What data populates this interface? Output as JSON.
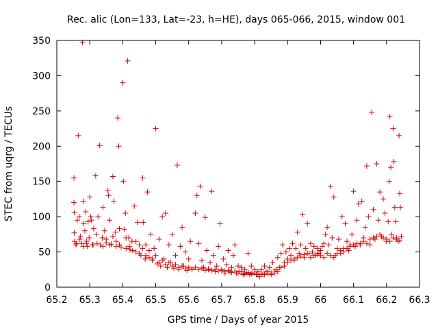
{
  "chart_data": {
    "type": "scatter",
    "title": "Rec. alic (Lon=133, Lat=-23, h=HE), days 065-066, 2015, window 001",
    "xlabel": "GPS time / Days of year 2015",
    "ylabel": "STEC from uqrg / TECUs",
    "xlim": [
      65.2,
      66.3
    ],
    "ylim": [
      0,
      350
    ],
    "xticks": [
      "65.2",
      "65.3",
      "65.4",
      "65.5",
      "65.6",
      "65.7",
      "65.8",
      "65.9",
      "66",
      "66.1",
      "66.2",
      "66.3"
    ],
    "yticks": [
      "0",
      "50",
      "100",
      "150",
      "200",
      "250",
      "300",
      "350"
    ],
    "grid": false,
    "marker": "+",
    "color": "#d40000",
    "series": [
      {
        "points": [
          [
            65.252,
            155
          ],
          [
            65.252,
            120
          ],
          [
            65.253,
            106
          ],
          [
            65.253,
            77
          ],
          [
            65.254,
            65
          ],
          [
            65.258,
            60
          ],
          [
            65.262,
            95
          ],
          [
            65.265,
            215
          ],
          [
            65.268,
            100
          ],
          [
            65.272,
            72
          ],
          [
            65.275,
            62
          ],
          [
            65.278,
            347
          ],
          [
            65.28,
            122
          ],
          [
            65.282,
            90
          ],
          [
            65.285,
            80
          ],
          [
            65.288,
            107
          ],
          [
            65.29,
            65
          ],
          [
            65.293,
            58
          ],
          [
            65.295,
            93
          ],
          [
            65.298,
            70
          ],
          [
            65.3,
            128
          ],
          [
            65.303,
            100
          ],
          [
            65.305,
            95
          ],
          [
            65.308,
            60
          ],
          [
            65.312,
            83
          ],
          [
            65.318,
            158
          ],
          [
            65.322,
            62
          ],
          [
            65.325,
            100
          ],
          [
            65.33,
            201
          ],
          [
            65.332,
            60
          ],
          [
            65.338,
            70
          ],
          [
            65.34,
            113
          ],
          [
            65.345,
            80
          ],
          [
            65.35,
            63
          ],
          [
            65.355,
            137
          ],
          [
            65.357,
            130
          ],
          [
            65.36,
            95
          ],
          [
            65.365,
            61
          ],
          [
            65.37,
            157
          ],
          [
            65.373,
            122
          ],
          [
            65.378,
            78
          ],
          [
            65.38,
            58
          ],
          [
            65.385,
            240
          ],
          [
            65.388,
            200
          ],
          [
            65.39,
            83
          ],
          [
            65.395,
            57
          ],
          [
            65.4,
            290
          ],
          [
            65.402,
            150
          ],
          [
            65.405,
            82
          ],
          [
            65.408,
            105
          ],
          [
            65.41,
            55
          ],
          [
            65.415,
            321
          ],
          [
            65.418,
            70
          ],
          [
            65.422,
            53
          ],
          [
            65.428,
            65
          ],
          [
            65.435,
            115
          ],
          [
            65.44,
            50
          ],
          [
            65.445,
            92
          ],
          [
            65.45,
            60
          ],
          [
            65.455,
            45
          ],
          [
            65.46,
            155
          ],
          [
            65.462,
            92
          ],
          [
            65.468,
            40
          ],
          [
            65.47,
            60
          ],
          [
            65.475,
            135
          ],
          [
            65.48,
            42
          ],
          [
            65.485,
            75
          ],
          [
            65.49,
            38
          ],
          [
            65.495,
            55
          ],
          [
            65.5,
            225
          ],
          [
            65.505,
            33
          ],
          [
            65.51,
            68
          ],
          [
            65.515,
            30
          ],
          [
            65.52,
            100
          ],
          [
            65.525,
            40
          ],
          [
            65.53,
            105
          ],
          [
            65.535,
            28
          ],
          [
            65.54,
            60
          ],
          [
            65.545,
            35
          ],
          [
            65.55,
            75
          ],
          [
            65.555,
            27
          ],
          [
            65.56,
            45
          ],
          [
            65.565,
            173
          ],
          [
            65.57,
            25
          ],
          [
            65.575,
            58
          ],
          [
            65.58,
            85
          ],
          [
            65.585,
            30
          ],
          [
            65.59,
            50
          ],
          [
            65.595,
            24
          ],
          [
            65.6,
            40
          ],
          [
            65.605,
            65
          ],
          [
            65.61,
            25
          ],
          [
            65.62,
            105
          ],
          [
            65.625,
            130
          ],
          [
            65.63,
            62
          ],
          [
            65.635,
            143
          ],
          [
            65.64,
            38
          ],
          [
            65.645,
            28
          ],
          [
            65.65,
            99
          ],
          [
            65.655,
            52
          ],
          [
            65.66,
            25
          ],
          [
            65.665,
            35
          ],
          [
            65.67,
            136
          ],
          [
            65.675,
            45
          ],
          [
            65.68,
            22
          ],
          [
            65.685,
            30
          ],
          [
            65.69,
            58
          ],
          [
            65.695,
            90
          ],
          [
            65.7,
            25
          ],
          [
            65.705,
            40
          ],
          [
            65.71,
            20
          ],
          [
            65.715,
            32
          ],
          [
            65.72,
            52
          ],
          [
            65.725,
            22
          ],
          [
            65.73,
            28
          ],
          [
            65.735,
            45
          ],
          [
            65.74,
            60
          ],
          [
            65.745,
            20
          ],
          [
            65.75,
            30
          ],
          [
            65.755,
            22
          ],
          [
            65.76,
            28
          ],
          [
            65.765,
            18
          ],
          [
            65.77,
            25
          ],
          [
            65.775,
            20
          ],
          [
            65.78,
            48
          ],
          [
            65.785,
            18
          ],
          [
            65.79,
            30
          ],
          [
            65.795,
            20
          ],
          [
            65.8,
            25
          ],
          [
            65.805,
            18
          ],
          [
            65.81,
            22
          ],
          [
            65.815,
            15
          ],
          [
            65.82,
            25
          ],
          [
            65.825,
            18
          ],
          [
            65.83,
            30
          ],
          [
            65.835,
            22
          ],
          [
            65.84,
            20
          ],
          [
            65.845,
            28
          ],
          [
            65.85,
            18
          ],
          [
            65.855,
            35
          ],
          [
            65.86,
            20
          ],
          [
            65.865,
            25
          ],
          [
            65.87,
            42
          ],
          [
            65.875,
            28
          ],
          [
            65.88,
            48
          ],
          [
            65.885,
            60
          ],
          [
            65.89,
            35
          ],
          [
            65.895,
            50
          ],
          [
            65.9,
            40
          ],
          [
            65.905,
            55
          ],
          [
            65.91,
            45
          ],
          [
            65.915,
            62
          ],
          [
            65.92,
            38
          ],
          [
            65.925,
            55
          ],
          [
            65.93,
            78
          ],
          [
            65.935,
            48
          ],
          [
            65.94,
            60
          ],
          [
            65.945,
            103
          ],
          [
            65.95,
            42
          ],
          [
            65.955,
            55
          ],
          [
            65.96,
            90
          ],
          [
            65.965,
            48
          ],
          [
            65.97,
            62
          ],
          [
            65.975,
            50
          ],
          [
            65.98,
            58
          ],
          [
            65.985,
            45
          ],
          [
            65.99,
            55
          ],
          [
            65.995,
            48
          ],
          [
            66.0,
            52
          ],
          [
            66.005,
            58
          ],
          [
            66.01,
            62
          ],
          [
            66.015,
            75
          ],
          [
            66.02,
            85
          ],
          [
            66.025,
            60
          ],
          [
            66.03,
            143
          ],
          [
            66.035,
            70
          ],
          [
            66.04,
            128
          ],
          [
            66.045,
            45
          ],
          [
            66.05,
            55
          ],
          [
            66.055,
            68
          ],
          [
            66.06,
            48
          ],
          [
            66.065,
            100
          ],
          [
            66.07,
            55
          ],
          [
            66.075,
            90
          ],
          [
            66.08,
            65
          ],
          [
            66.085,
            52
          ],
          [
            66.09,
            60
          ],
          [
            66.095,
            75
          ],
          [
            66.1,
            136
          ],
          [
            66.105,
            58
          ],
          [
            66.11,
            95
          ],
          [
            66.115,
            118
          ],
          [
            66.12,
            62
          ],
          [
            66.125,
            122
          ],
          [
            66.13,
            70
          ],
          [
            66.135,
            85
          ],
          [
            66.14,
            172
          ],
          [
            66.145,
            100
          ],
          [
            66.15,
            60
          ],
          [
            66.155,
            248
          ],
          [
            66.16,
            110
          ],
          [
            66.165,
            68
          ],
          [
            66.17,
            175
          ],
          [
            66.175,
            95
          ],
          [
            66.18,
            135
          ],
          [
            66.185,
            72
          ],
          [
            66.19,
            125
          ],
          [
            66.195,
            105
          ],
          [
            66.2,
            65
          ],
          [
            66.205,
            93
          ],
          [
            66.208,
            150
          ],
          [
            66.21,
            242
          ],
          [
            66.213,
            170
          ],
          [
            66.215,
            75
          ],
          [
            66.22,
            225
          ],
          [
            66.222,
            178
          ],
          [
            66.225,
            113
          ],
          [
            66.228,
            93
          ],
          [
            66.23,
            70
          ],
          [
            66.235,
            65
          ],
          [
            66.238,
            215
          ],
          [
            66.24,
            133
          ],
          [
            66.242,
            113
          ],
          [
            66.245,
            72
          ],
          [
            65.26,
            62
          ],
          [
            65.27,
            68
          ],
          [
            65.28,
            58
          ],
          [
            65.29,
            62
          ],
          [
            65.31,
            60
          ],
          [
            65.32,
            75
          ],
          [
            65.34,
            58
          ],
          [
            65.35,
            68
          ],
          [
            65.36,
            60
          ],
          [
            65.37,
            72
          ],
          [
            65.38,
            65
          ],
          [
            65.39,
            60
          ],
          [
            65.41,
            70
          ],
          [
            65.42,
            58
          ],
          [
            65.43,
            52
          ],
          [
            65.44,
            65
          ],
          [
            65.45,
            48
          ],
          [
            65.46,
            55
          ],
          [
            65.47,
            45
          ],
          [
            65.48,
            52
          ],
          [
            65.49,
            40
          ],
          [
            65.5,
            45
          ],
          [
            65.51,
            35
          ],
          [
            65.52,
            38
          ],
          [
            65.53,
            32
          ],
          [
            65.54,
            35
          ],
          [
            65.55,
            30
          ],
          [
            65.56,
            32
          ],
          [
            65.57,
            28
          ],
          [
            65.58,
            30
          ],
          [
            65.59,
            26
          ],
          [
            65.6,
            28
          ],
          [
            65.61,
            26
          ],
          [
            65.62,
            28
          ],
          [
            65.63,
            25
          ],
          [
            65.64,
            27
          ],
          [
            65.65,
            24
          ],
          [
            65.66,
            26
          ],
          [
            65.67,
            24
          ],
          [
            65.68,
            25
          ],
          [
            65.69,
            23
          ],
          [
            65.7,
            24
          ],
          [
            65.71,
            22
          ],
          [
            65.72,
            24
          ],
          [
            65.73,
            21
          ],
          [
            65.74,
            23
          ],
          [
            65.75,
            20
          ],
          [
            65.76,
            22
          ],
          [
            65.77,
            19
          ],
          [
            65.78,
            21
          ],
          [
            65.79,
            19
          ],
          [
            65.8,
            20
          ],
          [
            65.81,
            18
          ],
          [
            65.82,
            20
          ],
          [
            65.83,
            18
          ],
          [
            65.84,
            22
          ],
          [
            65.85,
            20
          ],
          [
            65.86,
            23
          ],
          [
            65.87,
            22
          ],
          [
            65.88,
            28
          ],
          [
            65.89,
            30
          ],
          [
            65.9,
            35
          ],
          [
            65.91,
            38
          ],
          [
            65.92,
            40
          ],
          [
            65.93,
            42
          ],
          [
            65.94,
            44
          ],
          [
            65.95,
            46
          ],
          [
            65.96,
            48
          ],
          [
            65.97,
            42
          ],
          [
            65.98,
            45
          ],
          [
            65.99,
            47
          ],
          [
            66.0,
            45
          ],
          [
            66.01,
            42
          ],
          [
            66.02,
            48
          ],
          [
            66.03,
            45
          ],
          [
            66.04,
            42
          ],
          [
            66.05,
            48
          ],
          [
            66.06,
            52
          ],
          [
            66.07,
            50
          ],
          [
            66.08,
            55
          ],
          [
            66.09,
            58
          ],
          [
            66.1,
            60
          ],
          [
            66.11,
            62
          ],
          [
            66.12,
            60
          ],
          [
            66.13,
            65
          ],
          [
            66.14,
            62
          ],
          [
            66.15,
            68
          ],
          [
            66.16,
            70
          ],
          [
            66.17,
            72
          ],
          [
            66.18,
            75
          ],
          [
            66.19,
            70
          ],
          [
            66.2,
            68
          ],
          [
            66.21,
            65
          ],
          [
            66.22,
            70
          ],
          [
            66.23,
            68
          ],
          [
            66.24,
            66
          ]
        ]
      }
    ]
  }
}
